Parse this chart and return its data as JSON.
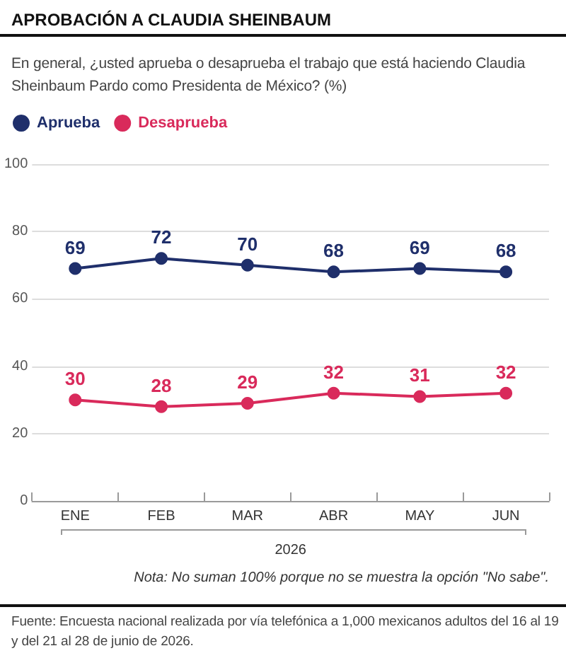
{
  "chart_data": {
    "type": "line",
    "title": "APROBACIÓN A CLAUDIA SHEINBAUM",
    "subtitle": "En general, ¿usted aprueba o desaprueba el trabajo que está haciendo Claudia Sheinbaum Pardo como Presidenta de México? (%)",
    "xlabel": "2026",
    "categories": [
      "ENE",
      "FEB",
      "MAR",
      "ABR",
      "MAY",
      "JUN"
    ],
    "series": [
      {
        "name": "Aprueba",
        "color": "#1f2f6b",
        "values": [
          69,
          72,
          70,
          68,
          69,
          68
        ]
      },
      {
        "name": "Desaprueba",
        "color": "#d92a5b",
        "values": [
          30,
          28,
          29,
          32,
          31,
          32
        ]
      }
    ],
    "ylim": [
      0,
      100
    ],
    "yticks": [
      0,
      20,
      40,
      60,
      80,
      100
    ],
    "grid": "y",
    "legend": "top left",
    "marker": "circle",
    "line_style": "solid",
    "data_labels": true,
    "annotations": [
      "Nota: No suman 100% porque no se muestra la opción \"No sabe\".",
      "Fuente: Encuesta nacional realizada por vía telefónica a 1,000 mexicanos adultos del 16 al 19 y del 21 al 28 de junio de 2026."
    ]
  }
}
